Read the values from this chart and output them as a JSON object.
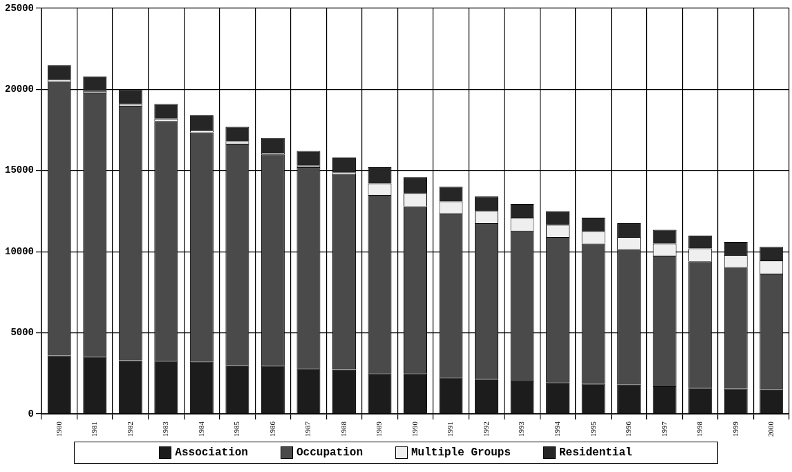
{
  "chart_data": {
    "type": "bar",
    "stacked": true,
    "grid": true,
    "legend": "bottom",
    "categories": [
      "1980",
      "1981",
      "1982",
      "1983",
      "1984",
      "1985",
      "1986",
      "1987",
      "1988",
      "1989",
      "1990",
      "1991",
      "1992",
      "1993",
      "1994",
      "1995",
      "1996",
      "1997",
      "1998",
      "1999",
      "2000"
    ],
    "ylim": [
      0,
      25000
    ],
    "yticks": [
      0,
      5000,
      10000,
      15000,
      20000,
      25000
    ],
    "series": [
      {
        "name": "Association",
        "color": "#1c1c1c",
        "values": [
          3600,
          3500,
          3300,
          3250,
          3200,
          3000,
          2950,
          2800,
          2750,
          2500,
          2500,
          2250,
          2150,
          2000,
          1950,
          1850,
          1800,
          1700,
          1600,
          1550,
          1500
        ]
      },
      {
        "name": "Occupation",
        "color": "#4a4a4a",
        "values": [
          16900,
          16300,
          15700,
          14800,
          14150,
          13650,
          13050,
          12400,
          12050,
          11000,
          10300,
          10100,
          9600,
          9300,
          8950,
          8650,
          8350,
          8050,
          7800,
          7500,
          7150
        ]
      },
      {
        "name": "Multiple Groups",
        "color": "#efefef",
        "values": [
          100,
          100,
          100,
          150,
          150,
          150,
          100,
          100,
          100,
          700,
          800,
          750,
          750,
          800,
          750,
          750,
          750,
          750,
          800,
          750,
          800
        ]
      },
      {
        "name": "Residential",
        "color": "#262626",
        "values": [
          900,
          900,
          900,
          900,
          900,
          900,
          900,
          900,
          900,
          1000,
          1000,
          900,
          900,
          850,
          850,
          850,
          850,
          850,
          800,
          800,
          850
        ]
      }
    ]
  }
}
